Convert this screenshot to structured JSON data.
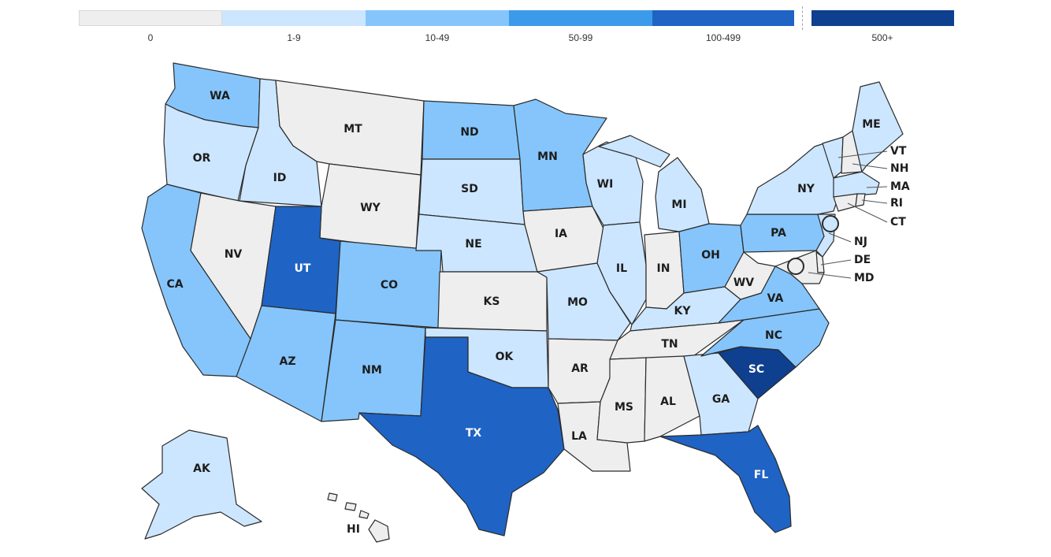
{
  "legend": {
    "bins": [
      {
        "label": "0",
        "color": "#eeeeee"
      },
      {
        "label": "1-9",
        "color": "#cce6ff"
      },
      {
        "label": "10-49",
        "color": "#85c5fb"
      },
      {
        "label": "50-99",
        "color": "#3b9bea"
      },
      {
        "label": "100-499",
        "color": "#1f63c4"
      },
      {
        "label": "500+",
        "color": "#0f3f8f"
      }
    ]
  },
  "states": {
    "WA": {
      "label": "WA",
      "bin": 2
    },
    "OR": {
      "label": "OR",
      "bin": 1
    },
    "CA": {
      "label": "CA",
      "bin": 2
    },
    "ID": {
      "label": "ID",
      "bin": 1
    },
    "NV": {
      "label": "NV",
      "bin": 0
    },
    "MT": {
      "label": "MT",
      "bin": 0
    },
    "WY": {
      "label": "WY",
      "bin": 0
    },
    "UT": {
      "label": "UT",
      "bin": 4
    },
    "AZ": {
      "label": "AZ",
      "bin": 2
    },
    "CO": {
      "label": "CO",
      "bin": 2
    },
    "NM": {
      "label": "NM",
      "bin": 2
    },
    "ND": {
      "label": "ND",
      "bin": 2
    },
    "SD": {
      "label": "SD",
      "bin": 1
    },
    "NE": {
      "label": "NE",
      "bin": 1
    },
    "KS": {
      "label": "KS",
      "bin": 0
    },
    "OK": {
      "label": "OK",
      "bin": 1
    },
    "TX": {
      "label": "TX",
      "bin": 4
    },
    "MN": {
      "label": "MN",
      "bin": 2
    },
    "IA": {
      "label": "IA",
      "bin": 0
    },
    "MO": {
      "label": "MO",
      "bin": 1
    },
    "AR": {
      "label": "AR",
      "bin": 0
    },
    "LA": {
      "label": "LA",
      "bin": 0
    },
    "WI": {
      "label": "WI",
      "bin": 1
    },
    "IL": {
      "label": "IL",
      "bin": 1
    },
    "MI": {
      "label": "MI",
      "bin": 1
    },
    "IN": {
      "label": "IN",
      "bin": 0
    },
    "OH": {
      "label": "OH",
      "bin": 2
    },
    "KY": {
      "label": "KY",
      "bin": 1
    },
    "TN": {
      "label": "TN",
      "bin": 0
    },
    "MS": {
      "label": "MS",
      "bin": 0
    },
    "AL": {
      "label": "AL",
      "bin": 0
    },
    "GA": {
      "label": "GA",
      "bin": 1
    },
    "FL": {
      "label": "FL",
      "bin": 4
    },
    "SC": {
      "label": "SC",
      "bin": 5
    },
    "NC": {
      "label": "NC",
      "bin": 2
    },
    "VA": {
      "label": "VA",
      "bin": 2
    },
    "WV": {
      "label": "WV",
      "bin": 0
    },
    "PA": {
      "label": "PA",
      "bin": 2
    },
    "NY": {
      "label": "NY",
      "bin": 1
    },
    "VT": {
      "label": "VT",
      "bin": 1
    },
    "NH": {
      "label": "NH",
      "bin": 0
    },
    "ME": {
      "label": "ME",
      "bin": 1
    },
    "MA": {
      "label": "MA",
      "bin": 1
    },
    "RI": {
      "label": "RI",
      "bin": 0
    },
    "CT": {
      "label": "CT",
      "bin": 0
    },
    "NJ": {
      "label": "NJ",
      "bin": 1
    },
    "DE": {
      "label": "DE",
      "bin": 0
    },
    "MD": {
      "label": "MD",
      "bin": 0
    },
    "AK": {
      "label": "AK",
      "bin": 1
    },
    "HI": {
      "label": "HI",
      "bin": 0
    }
  },
  "markers": {
    "nyc": {
      "bin": 1
    },
    "dc": {
      "bin": 0
    }
  }
}
